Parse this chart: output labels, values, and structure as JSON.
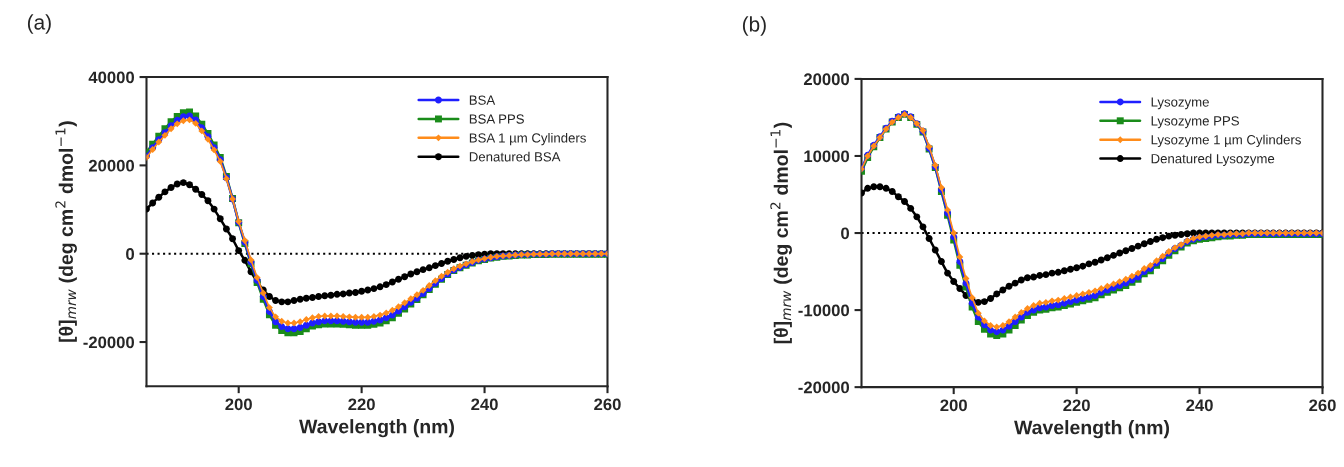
{
  "chart_data": [
    {
      "type": "line",
      "title": "(a)",
      "xlabel": "Wavelength (nm)",
      "ylabel": "[θ]$_{mrw}$ (deg cm$^{2}$ dmol$^{−1}$)",
      "x": [
        185,
        186,
        187,
        188,
        189,
        190,
        191,
        192,
        193,
        194,
        195,
        196,
        197,
        198,
        199,
        200,
        201,
        202,
        203,
        204,
        205,
        206,
        207,
        208,
        209,
        210,
        211,
        212,
        213,
        214,
        215,
        216,
        217,
        218,
        219,
        220,
        221,
        222,
        223,
        224,
        225,
        226,
        227,
        228,
        229,
        230,
        231,
        232,
        233,
        234,
        235,
        236,
        237,
        238,
        239,
        240,
        241,
        242,
        243,
        244,
        245,
        246,
        247,
        248,
        249,
        250,
        251,
        252,
        253,
        254,
        255,
        256,
        257,
        258,
        259,
        260
      ],
      "xlim": [
        185,
        260
      ],
      "xticks": [
        200,
        220,
        240,
        260
      ],
      "ylim": [
        -30000,
        40000
      ],
      "yticks": [
        -20000,
        0,
        20000,
        40000
      ],
      "grid": false,
      "legend": "top right",
      "ref_lines": [
        {
          "axis": "y",
          "value": 0,
          "color": "#000000",
          "line_style": "dotted"
        }
      ],
      "series": [
        {
          "name": "BSA",
          "color": "#1f1fff",
          "marker": "circle",
          "values": [
            22100,
            24000,
            25800,
            27400,
            29000,
            30200,
            31000,
            31200,
            30300,
            28500,
            26500,
            24000,
            21300,
            17200,
            12400,
            7100,
            2600,
            -1900,
            -6000,
            -9700,
            -13100,
            -15400,
            -16500,
            -17000,
            -17000,
            -16700,
            -16200,
            -15700,
            -15400,
            -15200,
            -15200,
            -15200,
            -15300,
            -15400,
            -15500,
            -15500,
            -15500,
            -15300,
            -15000,
            -14500,
            -13900,
            -13000,
            -12000,
            -11000,
            -10100,
            -9000,
            -7900,
            -6700,
            -5600,
            -4600,
            -3700,
            -3100,
            -2500,
            -2000,
            -1500,
            -1200,
            -900,
            -700,
            -500,
            -400,
            -300,
            -200,
            -200,
            -100,
            -100,
            -100,
            0,
            0,
            0,
            0,
            0,
            0,
            0,
            0,
            0,
            0
          ]
        },
        {
          "name": "BSA PPS",
          "color": "#1a8c1a",
          "marker": "square",
          "values": [
            23000,
            24800,
            26600,
            28300,
            29900,
            31100,
            31900,
            32100,
            31200,
            29300,
            27200,
            24600,
            21800,
            17500,
            12500,
            7000,
            2300,
            -2300,
            -6500,
            -10300,
            -13800,
            -16200,
            -17400,
            -17900,
            -17900,
            -17600,
            -17000,
            -16400,
            -16100,
            -15900,
            -15900,
            -15900,
            -16000,
            -16100,
            -16200,
            -16200,
            -16200,
            -16000,
            -15700,
            -15200,
            -14500,
            -13500,
            -12500,
            -11400,
            -10400,
            -9300,
            -8100,
            -6900,
            -5800,
            -4700,
            -3800,
            -3200,
            -2600,
            -2100,
            -1600,
            -1300,
            -1000,
            -800,
            -600,
            -500,
            -400,
            -300,
            -300,
            -200,
            -200,
            -200,
            -100,
            -100,
            -100,
            -100,
            -100,
            -100,
            -100,
            -100,
            -100,
            -100
          ]
        },
        {
          "name": "BSA 1 µm Cylinders",
          "color": "#ff8c1a",
          "marker": "diamond",
          "values": [
            21800,
            23600,
            25300,
            26800,
            28300,
            29400,
            30100,
            30300,
            29500,
            27800,
            25900,
            23500,
            20900,
            17000,
            12400,
            7300,
            3000,
            -1400,
            -5400,
            -8900,
            -12200,
            -14300,
            -15300,
            -15700,
            -15700,
            -15400,
            -14900,
            -14500,
            -14200,
            -14100,
            -14100,
            -14100,
            -14200,
            -14300,
            -14400,
            -14400,
            -14400,
            -14200,
            -13900,
            -13400,
            -12800,
            -12000,
            -11100,
            -10200,
            -9300,
            -8300,
            -7200,
            -6100,
            -5100,
            -4200,
            -3400,
            -2800,
            -2300,
            -1800,
            -1400,
            -1100,
            -800,
            -600,
            -500,
            -400,
            -300,
            -200,
            -200,
            -100,
            -100,
            -100,
            0,
            0,
            0,
            0,
            0,
            0,
            0,
            0,
            0,
            0
          ]
        },
        {
          "name": "Denatured BSA",
          "color": "#000000",
          "marker": "circle",
          "values": [
            10100,
            11500,
            12800,
            14000,
            15000,
            15800,
            16100,
            15600,
            14600,
            13400,
            12000,
            10100,
            7900,
            5600,
            3400,
            700,
            -1500,
            -4100,
            -6400,
            -8200,
            -9700,
            -10600,
            -10900,
            -10900,
            -10600,
            -10300,
            -10100,
            -9900,
            -9700,
            -9500,
            -9400,
            -9200,
            -9100,
            -8900,
            -8800,
            -8500,
            -8200,
            -7900,
            -7500,
            -7000,
            -6400,
            -5800,
            -5200,
            -4600,
            -4100,
            -3600,
            -3200,
            -2700,
            -2200,
            -1700,
            -1300,
            -900,
            -600,
            -400,
            -200,
            -100,
            0,
            0,
            0,
            0,
            0,
            0,
            0,
            0,
            0,
            0,
            0,
            0,
            0,
            0,
            0,
            0,
            0,
            0,
            0,
            0
          ]
        }
      ]
    },
    {
      "type": "line",
      "title": "(b)",
      "xlabel": "Wavelength (nm)",
      "ylabel": "[θ]$_{mrw}$ (deg cm$^{2}$ dmol$^{−1}$)",
      "x": [
        185,
        186,
        187,
        188,
        189,
        190,
        191,
        192,
        193,
        194,
        195,
        196,
        197,
        198,
        199,
        200,
        201,
        202,
        203,
        204,
        205,
        206,
        207,
        208,
        209,
        210,
        211,
        212,
        213,
        214,
        215,
        216,
        217,
        218,
        219,
        220,
        221,
        222,
        223,
        224,
        225,
        226,
        227,
        228,
        229,
        230,
        231,
        232,
        233,
        234,
        235,
        236,
        237,
        238,
        239,
        240,
        241,
        242,
        243,
        244,
        245,
        246,
        247,
        248,
        249,
        250,
        251,
        252,
        253,
        254,
        255,
        256,
        257,
        258,
        259,
        260
      ],
      "xlim": [
        185,
        260
      ],
      "xticks": [
        200,
        220,
        240,
        260
      ],
      "ylim": [
        -20000,
        20000
      ],
      "yticks": [
        -20000,
        -10000,
        0,
        10000,
        20000
      ],
      "grid": false,
      "legend": "top right",
      "ref_lines": [
        {
          "axis": "y",
          "value": 0,
          "color": "#000000",
          "line_style": "dotted"
        }
      ],
      "series": [
        {
          "name": "Lysozyme",
          "color": "#1f1fff",
          "marker": "circle",
          "values": [
            8400,
            10100,
            11400,
            12500,
            13600,
            14500,
            15100,
            15500,
            15100,
            14200,
            13200,
            11000,
            8600,
            5600,
            2600,
            -500,
            -3700,
            -6500,
            -9100,
            -10900,
            -11900,
            -12600,
            -12800,
            -12600,
            -12100,
            -11500,
            -10900,
            -10300,
            -10000,
            -9700,
            -9600,
            -9400,
            -9300,
            -9100,
            -8900,
            -8700,
            -8500,
            -8300,
            -8100,
            -7700,
            -7400,
            -7100,
            -6800,
            -6500,
            -6100,
            -5700,
            -5000,
            -4600,
            -3900,
            -3300,
            -2600,
            -2000,
            -1600,
            -1100,
            -800,
            -600,
            -500,
            -400,
            -300,
            -300,
            -200,
            -200,
            -200,
            -100,
            -100,
            -100,
            -100,
            -100,
            -100,
            -100,
            -100,
            -100,
            -100,
            -100,
            -100,
            -100
          ]
        },
        {
          "name": "Lysozyme PPS",
          "color": "#1a8c1a",
          "marker": "square",
          "values": [
            8000,
            9800,
            11200,
            12400,
            13500,
            14400,
            15000,
            15400,
            15000,
            14100,
            13100,
            10900,
            8500,
            5400,
            2300,
            -900,
            -4200,
            -7000,
            -9600,
            -11500,
            -12500,
            -13100,
            -13300,
            -13100,
            -12600,
            -12000,
            -11300,
            -10700,
            -10300,
            -10000,
            -9900,
            -9700,
            -9600,
            -9400,
            -9200,
            -9000,
            -8800,
            -8600,
            -8400,
            -8000,
            -7700,
            -7400,
            -7100,
            -6800,
            -6400,
            -6000,
            -5300,
            -4900,
            -4200,
            -3600,
            -2900,
            -2300,
            -1800,
            -1300,
            -1000,
            -800,
            -700,
            -600,
            -500,
            -400,
            -400,
            -300,
            -300,
            -200,
            -200,
            -200,
            -200,
            -200,
            -200,
            -200,
            -200,
            -200,
            -200,
            -200,
            -200,
            -200
          ]
        },
        {
          "name": "Lysozyme 1 µm Cylinders",
          "color": "#ff8c1a",
          "marker": "diamond",
          "values": [
            8300,
            10000,
            11300,
            12400,
            13500,
            14400,
            15000,
            15400,
            15000,
            14200,
            13300,
            11200,
            8800,
            5900,
            3000,
            0,
            -3100,
            -5900,
            -8400,
            -10400,
            -11400,
            -12000,
            -12200,
            -12000,
            -11500,
            -10900,
            -10300,
            -9800,
            -9400,
            -9100,
            -9000,
            -8800,
            -8700,
            -8500,
            -8300,
            -8100,
            -7900,
            -7700,
            -7500,
            -7200,
            -6900,
            -6600,
            -6300,
            -6000,
            -5600,
            -5200,
            -4600,
            -4200,
            -3600,
            -3000,
            -2400,
            -1900,
            -1500,
            -1000,
            -700,
            -500,
            -400,
            -300,
            -200,
            -200,
            -100,
            -100,
            -100,
            0,
            0,
            0,
            0,
            0,
            0,
            0,
            0,
            0,
            0,
            0,
            0,
            0
          ]
        },
        {
          "name": "Denatured Lysozyme",
          "color": "#000000",
          "marker": "circle",
          "values": [
            5200,
            5800,
            6000,
            6000,
            5800,
            5400,
            4700,
            4100,
            3200,
            2100,
            800,
            -700,
            -2200,
            -3700,
            -5200,
            -6300,
            -7200,
            -8100,
            -8700,
            -9000,
            -8900,
            -8500,
            -7900,
            -7400,
            -6900,
            -6500,
            -6100,
            -5800,
            -5700,
            -5500,
            -5400,
            -5200,
            -5100,
            -4900,
            -4700,
            -4500,
            -4300,
            -4000,
            -3800,
            -3500,
            -3200,
            -2900,
            -2600,
            -2300,
            -2000,
            -1700,
            -1400,
            -1100,
            -800,
            -600,
            -400,
            -300,
            -200,
            -100,
            0,
            0,
            0,
            0,
            0,
            0,
            0,
            0,
            0,
            0,
            0,
            0,
            0,
            0,
            0,
            0,
            0,
            0,
            0,
            0,
            0,
            0
          ]
        }
      ]
    }
  ]
}
